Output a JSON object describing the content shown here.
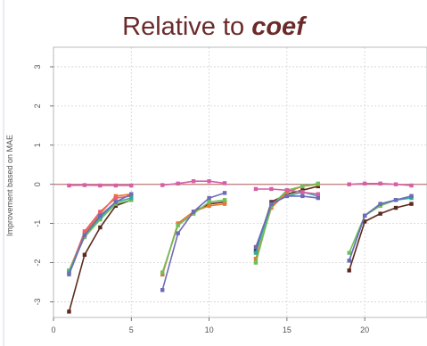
{
  "title": {
    "prefix": "Relative to ",
    "emphasis": "coef"
  },
  "colors": {
    "title": "#6b2a2a",
    "zero_line": "#b05a5a",
    "grid": "#d4d4d4",
    "axis": "#555555"
  },
  "chart_data": {
    "type": "line",
    "title": "Relative to coef",
    "xlabel": "",
    "ylabel": "Improvement based on MAE",
    "xlim": [
      0,
      24
    ],
    "ylim": [
      -3.4,
      3.5
    ],
    "xticks": [
      0,
      5,
      10,
      15,
      20
    ],
    "yticks": [
      -3,
      -2,
      -1,
      0,
      1,
      2,
      3
    ],
    "grid": true,
    "reference_line": 0,
    "groups": [
      {
        "x": [
          1,
          2,
          3,
          4,
          5
        ],
        "series": [
          {
            "color": "#5b2a1e",
            "values": [
              -3.25,
              -1.8,
              -1.1,
              -0.55,
              -0.4
            ]
          },
          {
            "color": "#e7792b",
            "values": [
              -2.2,
              -1.25,
              -0.75,
              -0.3,
              -0.25
            ]
          },
          {
            "color": "#ef5f6b",
            "values": [
              -2.25,
              -1.2,
              -0.7,
              -0.35,
              -0.3
            ]
          },
          {
            "color": "#6fbf5a",
            "values": [
              -2.2,
              -1.35,
              -0.9,
              -0.5,
              -0.4
            ]
          },
          {
            "color": "#35a9a0",
            "values": [
              -2.25,
              -1.3,
              -0.85,
              -0.45,
              -0.35
            ]
          },
          {
            "color": "#6e6ab8",
            "values": [
              -2.3,
              -1.3,
              -0.8,
              -0.45,
              -0.25
            ]
          },
          {
            "color": "#d65fa5",
            "values": [
              -0.03,
              -0.02,
              -0.03,
              -0.03,
              -0.03
            ]
          }
        ]
      },
      {
        "x": [
          7,
          8,
          9,
          10,
          11
        ],
        "series": [
          {
            "color": "#5b2a1e",
            "values": [
              -2.3,
              -1.0,
              -0.7,
              -0.5,
              -0.45
            ]
          },
          {
            "color": "#e7792b",
            "values": [
              -2.3,
              -1.0,
              -0.7,
              -0.55,
              -0.5
            ]
          },
          {
            "color": "#6fbf5a",
            "values": [
              -2.25,
              -1.05,
              -0.75,
              -0.45,
              -0.4
            ]
          },
          {
            "color": "#6e6ab8",
            "values": [
              -2.7,
              -1.25,
              -0.7,
              -0.35,
              -0.22
            ]
          },
          {
            "color": "#d65fa5",
            "values": [
              -0.02,
              0.02,
              0.08,
              0.08,
              0.03
            ]
          }
        ]
      },
      {
        "x": [
          13,
          14,
          15,
          16,
          17
        ],
        "series": [
          {
            "color": "#5b2a1e",
            "values": [
              -1.7,
              -0.45,
              -0.25,
              -0.15,
              -0.05
            ]
          },
          {
            "color": "#e7792b",
            "values": [
              -1.9,
              -0.6,
              -0.2,
              -0.05,
              0.0
            ]
          },
          {
            "color": "#6fbf5a",
            "values": [
              -2.0,
              -0.55,
              -0.15,
              -0.05,
              0.02
            ]
          },
          {
            "color": "#35a9a0",
            "values": [
              -1.75,
              -0.5,
              -0.3,
              -0.2,
              -0.3
            ]
          },
          {
            "color": "#6e6ab8",
            "values": [
              -1.6,
              -0.5,
              -0.3,
              -0.3,
              -0.35
            ]
          },
          {
            "color": "#d65fa5",
            "values": [
              -0.12,
              -0.12,
              -0.15,
              -0.2,
              -0.25
            ]
          }
        ]
      },
      {
        "x": [
          19,
          20,
          21,
          22,
          23
        ],
        "series": [
          {
            "color": "#5b2a1e",
            "values": [
              -2.2,
              -0.95,
              -0.75,
              -0.6,
              -0.5
            ]
          },
          {
            "color": "#6fbf5a",
            "values": [
              -1.75,
              -0.8,
              -0.55,
              -0.4,
              -0.3
            ]
          },
          {
            "color": "#35a9a0",
            "values": [
              -1.95,
              -0.8,
              -0.5,
              -0.4,
              -0.35
            ]
          },
          {
            "color": "#6e6ab8",
            "values": [
              -1.95,
              -0.8,
              -0.5,
              -0.4,
              -0.3
            ]
          },
          {
            "color": "#d65fa5",
            "values": [
              0.0,
              0.02,
              0.02,
              0.0,
              -0.03
            ]
          }
        ]
      }
    ]
  }
}
